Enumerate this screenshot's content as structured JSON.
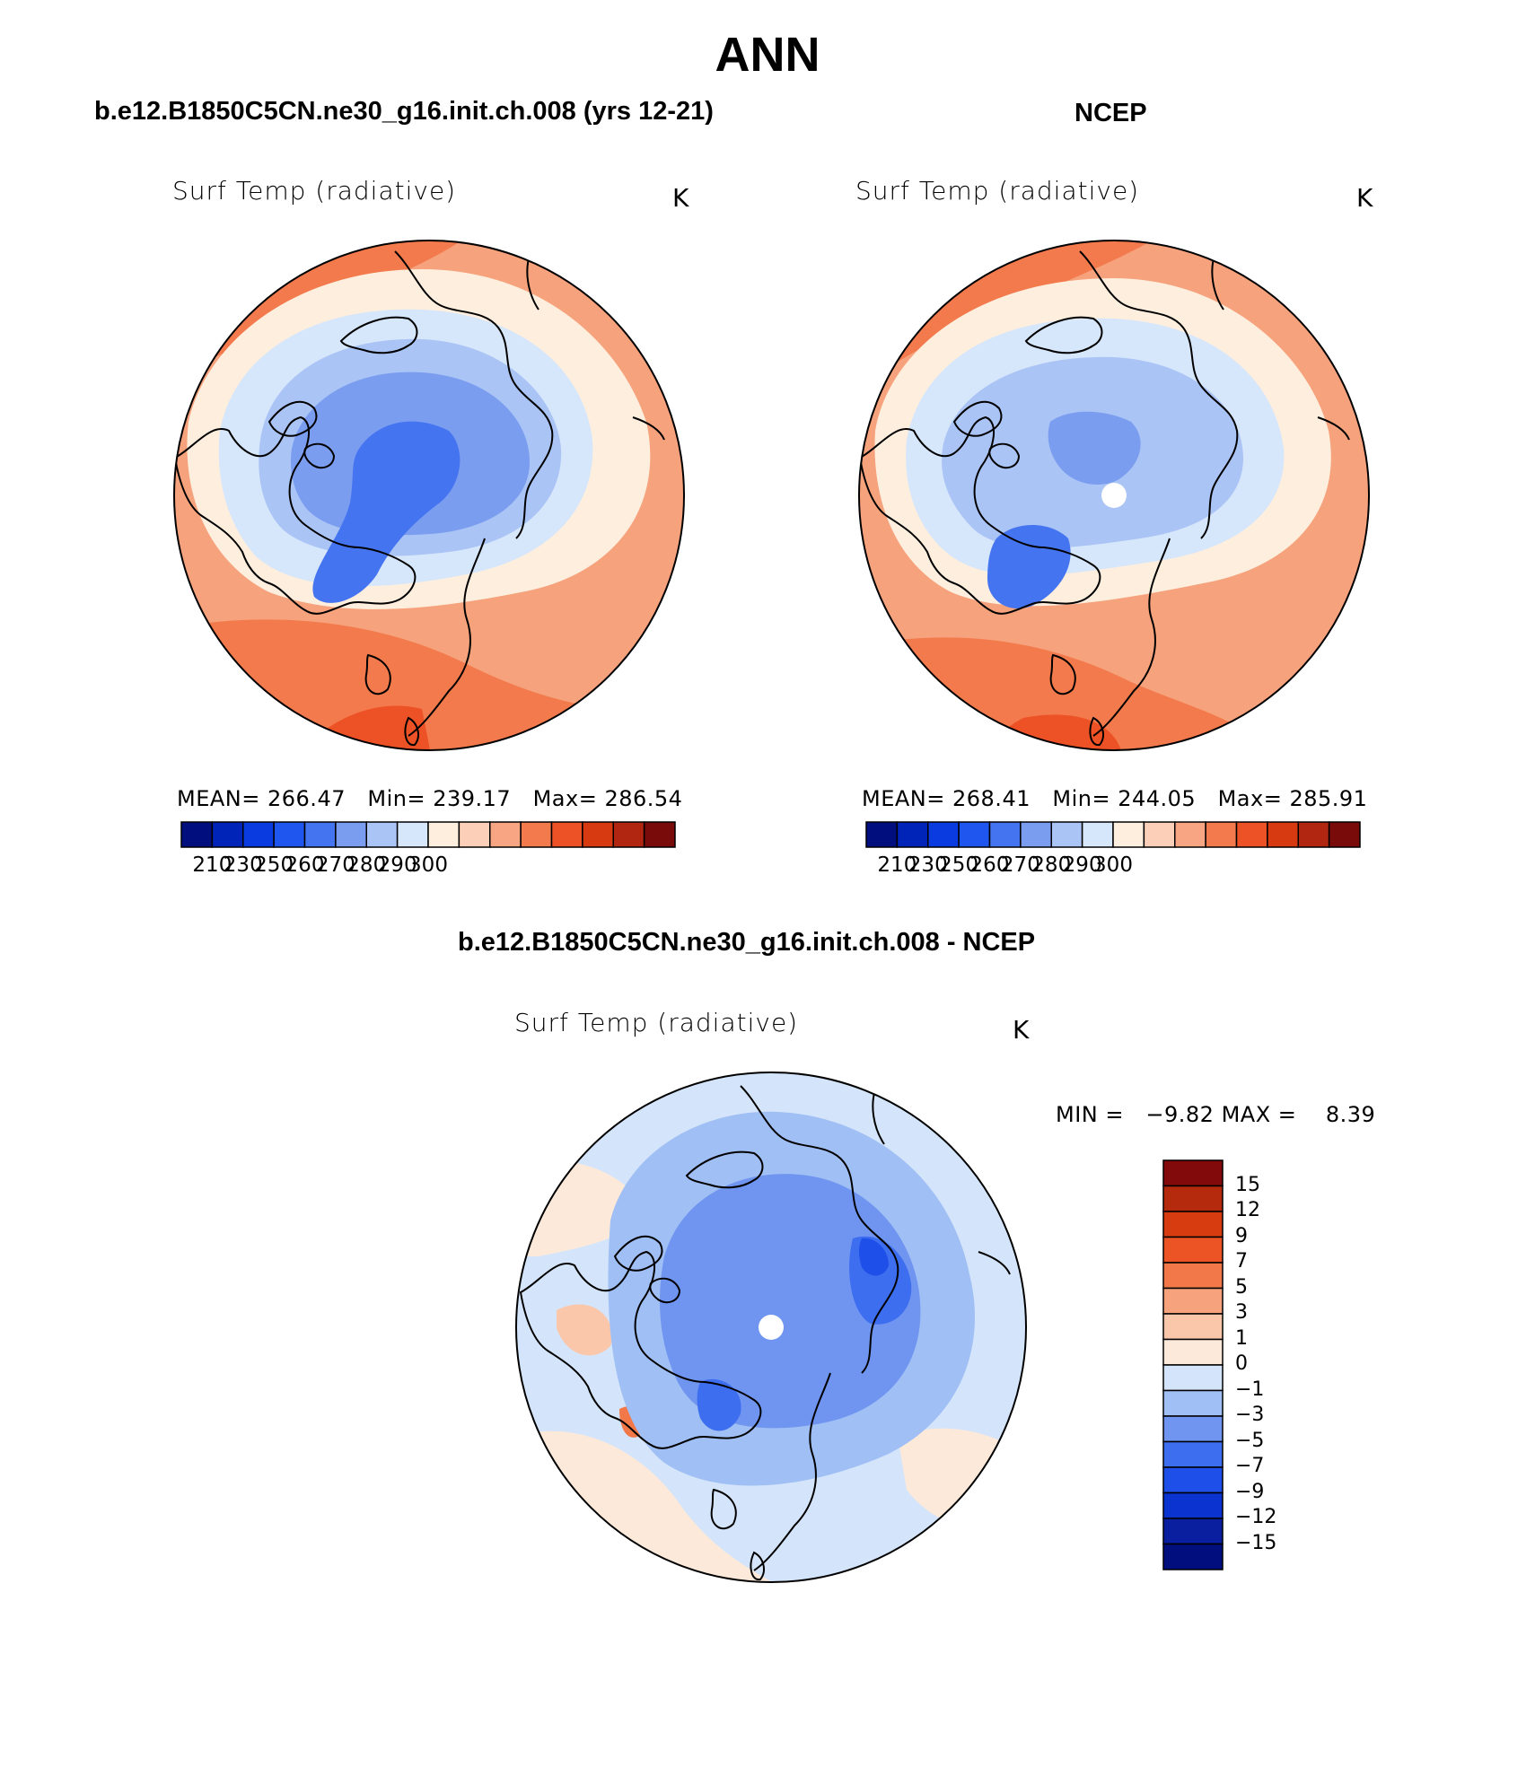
{
  "title": "ANN",
  "colors": {
    "abs_scale": [
      "#000e7e",
      "#0024b8",
      "#0a3be0",
      "#1f56f0",
      "#4574f0",
      "#7b9df0",
      "#aac4f5",
      "#d6e6fb",
      "#feeede",
      "#fcd0b8",
      "#f8a583",
      "#f37a4c",
      "#ed5226",
      "#d73a10",
      "#b12610",
      "#7a0b0b"
    ],
    "diff_scale": [
      "#000e7e",
      "#0a1fa0",
      "#0a33d0",
      "#1e4fe8",
      "#3e6ef0",
      "#7095f0",
      "#a0bff4",
      "#d4e5fb",
      "#fde9d9",
      "#fbc7ab",
      "#f6a27c",
      "#f2784a",
      "#ec5425",
      "#d73c10",
      "#b52a0c",
      "#820a0a"
    ],
    "coastline": "#000000"
  },
  "panels": [
    {
      "id": "model",
      "title": "b.e12.B1850C5CN.ne30_g16.init.ch.008 (yrs 12-21)",
      "var_title": "Surf Temp (radiative)",
      "units": "K",
      "stats": {
        "mean_label": "MEAN=",
        "mean": "266.47",
        "min_label": "Min=",
        "min": "239.17",
        "max_label": "Max=",
        "max": "286.54"
      },
      "colorbar_labels": [
        "210",
        "230",
        "250",
        "260",
        "270",
        "280",
        "290",
        "300"
      ]
    },
    {
      "id": "obs",
      "title": "NCEP",
      "var_title": "Surf Temp (radiative)",
      "units": "K",
      "stats": {
        "mean_label": "MEAN=",
        "mean": "268.41",
        "min_label": "Min=",
        "min": "244.05",
        "max_label": "Max=",
        "max": "285.91"
      },
      "colorbar_labels": [
        "210",
        "230",
        "250",
        "260",
        "270",
        "280",
        "290",
        "300"
      ]
    },
    {
      "id": "diff",
      "title": "b.e12.B1850C5CN.ne30_g16.init.ch.008 - NCEP",
      "var_title": "Surf Temp (radiative)",
      "units": "K",
      "minmax": {
        "min_label": "MIN =",
        "min": "−9.82",
        "max_label": "MAX =",
        "max": "8.39"
      },
      "colorbar_labels": [
        "15",
        "12",
        "9",
        "7",
        "5",
        "3",
        "1",
        "0",
        "−1",
        "−3",
        "−5",
        "−7",
        "−9",
        "−12",
        "−15"
      ]
    }
  ]
}
